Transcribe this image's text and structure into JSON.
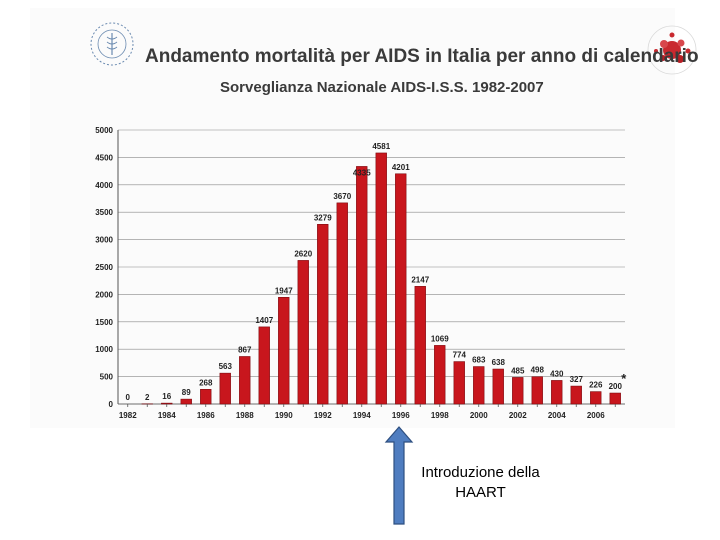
{
  "title": "Andamento mortalità per AIDS in Italia per anno di calendario",
  "subtitle": "Sorveglianza Nazionale AIDS-I.S.S. 1982-2007",
  "annotation": {
    "line1": "Introduzione della",
    "line2": "HAART"
  },
  "footnote_marker": "*",
  "colors": {
    "bar": "#c8161d",
    "bar_dark": "#7d0b10",
    "arrow": "#4f7dc0",
    "arrow_border": "#2e4f80"
  },
  "chart_data": {
    "type": "bar",
    "title": "Andamento mortalità per AIDS in Italia per anno di calendario",
    "subtitle": "Sorveglianza Nazionale AIDS-I.S.S. 1982-2007",
    "categories": [
      "1982",
      "1983",
      "1984",
      "1985",
      "1986",
      "1987",
      "1988",
      "1989",
      "1990",
      "1991",
      "1992",
      "1993",
      "1994",
      "1995",
      "1996",
      "1997",
      "1998",
      "1999",
      "2000",
      "2001",
      "2002",
      "2003",
      "2004",
      "2005",
      "2006",
      "2007"
    ],
    "values": [
      0,
      2,
      16,
      89,
      268,
      563,
      867,
      1407,
      1947,
      2620,
      3279,
      3670,
      4335,
      4581,
      4201,
      2147,
      1069,
      774,
      683,
      638,
      485,
      498,
      430,
      327,
      226,
      200
    ],
    "x_tick_labels": [
      "1982",
      "1984",
      "1986",
      "1988",
      "1990",
      "1992",
      "1994",
      "1996",
      "1998",
      "2000",
      "2002",
      "2004",
      "2006"
    ],
    "y_ticks": [
      0,
      500,
      1000,
      1500,
      2000,
      2500,
      3000,
      3500,
      4000,
      4500,
      5000
    ],
    "ylim": [
      0,
      5000
    ],
    "grid": true,
    "legend": "none",
    "xlabel": "",
    "ylabel": ""
  }
}
